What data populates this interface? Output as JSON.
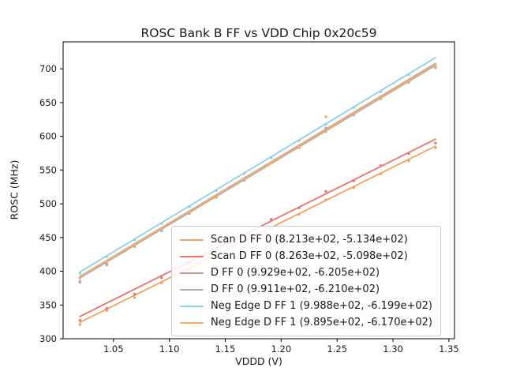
{
  "figure": {
    "background": "#ffffff"
  },
  "chart_data": {
    "type": "scatter",
    "title": "ROSC Bank B FF vs VDD Chip 0x20c59",
    "xlabel": "VDDD (V)",
    "ylabel": "ROSC (MHz)",
    "xlim": [
      1.005,
      1.355
    ],
    "ylim": [
      300,
      740
    ],
    "xticks": [
      1.05,
      1.1,
      1.15,
      1.2,
      1.25,
      1.3,
      1.35
    ],
    "yticks": [
      300,
      350,
      400,
      450,
      500,
      550,
      600,
      650,
      700
    ],
    "grid": false,
    "legend": {
      "position": "inside lower-center-right",
      "border_color": "#cccccc",
      "background": "#ffffff"
    },
    "x": [
      1.02,
      1.044,
      1.069,
      1.093,
      1.118,
      1.142,
      1.167,
      1.191,
      1.216,
      1.24,
      1.265,
      1.289,
      1.314,
      1.338
    ],
    "series": [
      {
        "name": "Scan D FF 0 (8.213e+02, -5.134e+02)",
        "color": "#f0a35e",
        "fit": {
          "slope": 821.3,
          "intercept": -513.4
        },
        "y": [
          321.0,
          341.5,
          361.0,
          382.5,
          403.0,
          423.5,
          444.0,
          463.5,
          484.5,
          506.0,
          524.0,
          544.5,
          564.0,
          583.0
        ]
      },
      {
        "name": "Scan D FF 0 (8.263e+02, -5.098e+02)",
        "color": "#e8736c",
        "fit": {
          "slope": 826.3,
          "intercept": -509.8
        },
        "y": [
          327.5,
          345.0,
          366.0,
          390.5,
          412.5,
          433.0,
          453.5,
          477.0,
          494.0,
          518.5,
          534.0,
          556.5,
          574.5,
          590.0
        ]
      },
      {
        "name": "D FF 0 (9.929e+02, -6.205e+02)",
        "color": "#c09491",
        "fit": {
          "slope": 992.9,
          "intercept": -620.5
        },
        "y": [
          385.0,
          411.0,
          438.0,
          462.5,
          488.0,
          512.0,
          537.0,
          560.5,
          585.5,
          612.0,
          634.5,
          658.0,
          682.0,
          704.0
        ]
      },
      {
        "name": "D FF 0 (9.911e+02, -6.210e+02)",
        "color": "#b0b0b0",
        "fit": {
          "slope": 991.1,
          "intercept": -621.0
        },
        "y": [
          383.5,
          409.0,
          436.5,
          460.0,
          485.5,
          509.5,
          534.5,
          561.0,
          583.0,
          607.0,
          631.5,
          655.5,
          680.0,
          701.5
        ]
      },
      {
        "name": "Neg Edge D FF 1 (9.988e+02, -6.199e+02)",
        "color": "#87d3e8",
        "fit": {
          "slope": 998.8,
          "intercept": -619.9
        },
        "y": [
          397.0,
          421.5,
          446.5,
          470.5,
          496.0,
          519.5,
          545.0,
          568.5,
          593.5,
          618.0,
          642.5,
          666.0,
          691.5,
          706.0
        ]
      },
      {
        "name": "Neg Edge D FF 1 (9.895e+02, -6.170e+02)",
        "color": "#f4ad68",
        "fit": {
          "slope": 989.5,
          "intercept": -617.0
        },
        "y": [
          390.0,
          414.5,
          439.5,
          463.0,
          488.5,
          511.5,
          536.0,
          560.0,
          584.0,
          629.0,
          633.5,
          657.0,
          681.5,
          703.0
        ]
      }
    ]
  }
}
